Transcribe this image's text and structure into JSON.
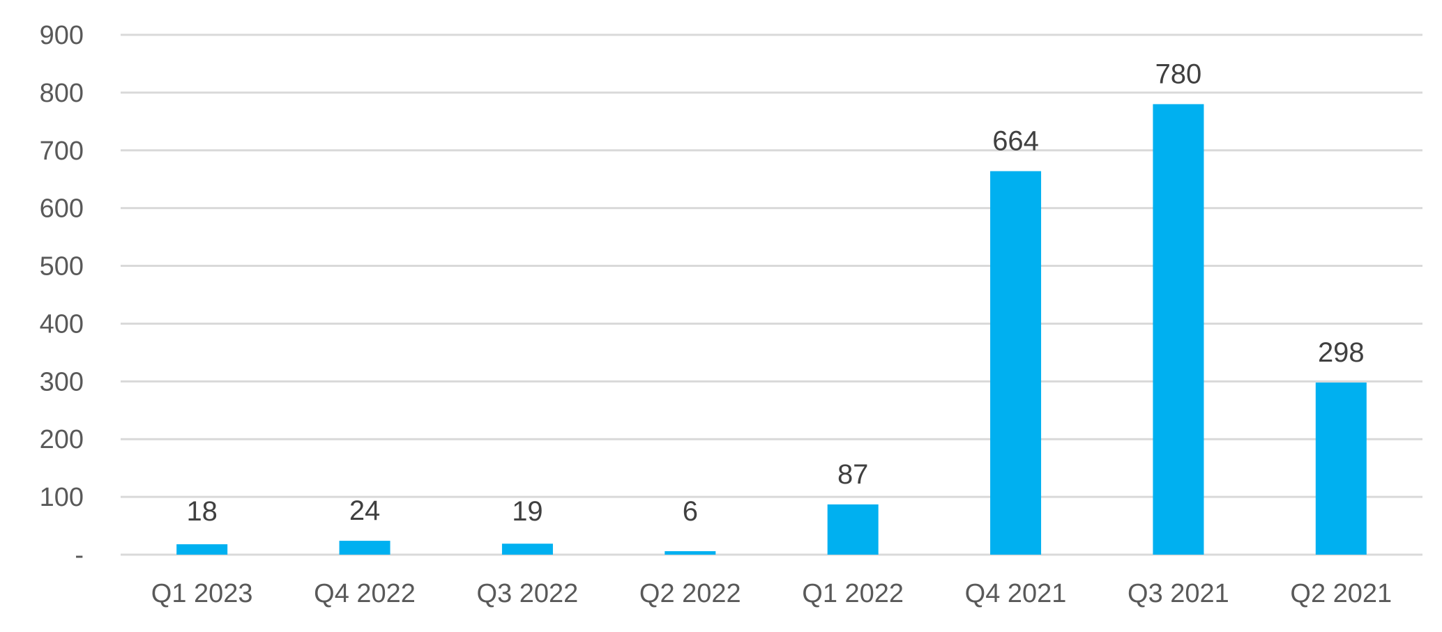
{
  "chart_data": {
    "type": "bar",
    "title": "",
    "xlabel": "",
    "ylabel": "",
    "categories": [
      "Q1 2023",
      "Q4 2022",
      "Q3 2022",
      "Q2 2022",
      "Q1 2022",
      "Q4 2021",
      "Q3 2021",
      "Q2 2021"
    ],
    "values": [
      18,
      24,
      19,
      6,
      87,
      664,
      780,
      298
    ],
    "data_labels": [
      "18",
      "24",
      "19",
      "6",
      "87",
      "664",
      "780",
      "298"
    ],
    "ylim": [
      0,
      900
    ],
    "y_ticks": [
      0,
      100,
      200,
      300,
      400,
      500,
      600,
      700,
      800,
      900
    ],
    "y_tick_labels": [
      "-",
      "100",
      "200",
      "300",
      "400",
      "500",
      "600",
      "700",
      "800",
      "900"
    ],
    "grid": true,
    "legend": "none",
    "bar_color": "#00b0f0",
    "grid_color": "#d9d9d9"
  }
}
